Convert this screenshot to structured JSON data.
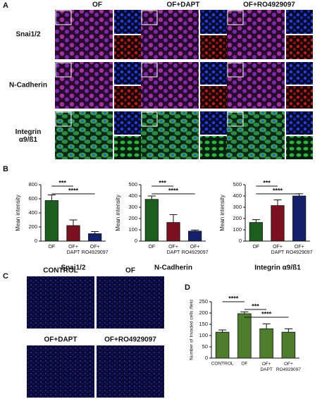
{
  "panel_labels": [
    "A",
    "B",
    "C",
    "D"
  ],
  "panel_a": {
    "columns": [
      "OF",
      "OF+DAPT",
      "OF+RO4929097"
    ],
    "rows": [
      "Snai1/2",
      "N-Cadherin",
      "Integrin\nα9/ß1"
    ]
  },
  "panel_c": {
    "labels": [
      "CONTROL",
      "OF",
      "OF+DAPT",
      "OF+RO4929097"
    ]
  },
  "chart_data": [
    {
      "type": "bar",
      "ylabel": "Mean intensity",
      "xlabel": "Snai1/2",
      "categories": [
        "OF",
        "OF+\nDAPT",
        "OF+\nRO4929097"
      ],
      "values": [
        575,
        220,
        105
      ],
      "errors": [
        80,
        80,
        30
      ],
      "colors": [
        "#1b5e1f",
        "#7a1020",
        "#14206a"
      ],
      "ylim": [
        0,
        800
      ],
      "yticks": [
        0,
        200,
        400,
        600,
        800
      ],
      "annotations": [
        "***",
        "****"
      ]
    },
    {
      "type": "bar",
      "ylabel": "Mean intensity",
      "xlabel": "N-Cadherin",
      "categories": [
        "OF",
        "OF+\nDAPT",
        "OF+\nRO4929097"
      ],
      "values": [
        370,
        165,
        88
      ],
      "errors": [
        30,
        70,
        10
      ],
      "colors": [
        "#1b5e1f",
        "#7a1020",
        "#14206a"
      ],
      "ylim": [
        0,
        500
      ],
      "yticks": [
        0,
        100,
        200,
        300,
        400,
        500
      ],
      "annotations": [
        "***",
        "****"
      ]
    },
    {
      "type": "bar",
      "ylabel": "Mean intensity",
      "xlabel": "Integrin α9/ß1",
      "categories": [
        "OF",
        "OF+\nDAPT",
        "OF+\nRO4929097"
      ],
      "values": [
        165,
        315,
        400
      ],
      "errors": [
        25,
        50,
        20
      ],
      "colors": [
        "#1b5e1f",
        "#7a1020",
        "#14206a"
      ],
      "ylim": [
        0,
        500
      ],
      "yticks": [
        0,
        100,
        200,
        300,
        400,
        500
      ],
      "annotations": [
        "***",
        "****"
      ]
    },
    {
      "type": "bar",
      "ylabel": "Number of Invaded cells /field",
      "categories": [
        "CONTROL",
        "OF",
        "OF+\nDAPT",
        "OF+\nRO4929097"
      ],
      "values": [
        115,
        197,
        130,
        115
      ],
      "errors": [
        10,
        8,
        22,
        15
      ],
      "colors": [
        "#4e7d2e",
        "#4e7d2e",
        "#4e7d2e",
        "#4e7d2e"
      ],
      "ylim": [
        0,
        250
      ],
      "yticks": [
        0,
        50,
        100,
        150,
        200,
        250
      ],
      "annotations": [
        "****",
        "***",
        "****"
      ]
    }
  ]
}
